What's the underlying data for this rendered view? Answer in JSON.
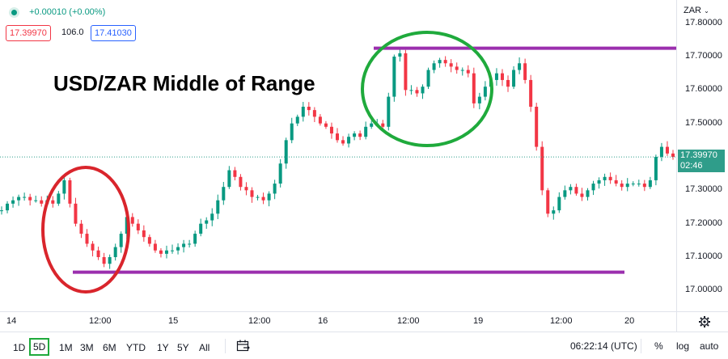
{
  "header": {
    "change_text": "+0.00010 (+0.00%)",
    "bid": "17.39970",
    "spread": "106.0",
    "ask": "17.41030",
    "currency_menu": "ZAR",
    "title": "USD/ZAR Middle of Range"
  },
  "price_axis": {
    "ticks": [
      "17.80000",
      "17.70000",
      "17.60000",
      "17.50000",
      "17.40000",
      "17.30000",
      "17.20000",
      "17.10000",
      "17.00000"
    ],
    "current_price": "17.39970",
    "countdown": "02:46"
  },
  "time_axis": {
    "ticks": [
      "14",
      "12:00",
      "15",
      "12:00",
      "16",
      "12:00",
      "19",
      "12:00",
      "20"
    ]
  },
  "bottom_bar": {
    "ranges": [
      "1D",
      "5D",
      "1M",
      "3M",
      "6M",
      "YTD",
      "1Y",
      "5Y",
      "All"
    ],
    "active_range": "5D",
    "clock": "06:22:14 (UTC)",
    "percent_label": "%",
    "log_label": "log",
    "auto_label": "auto",
    "compare_icon": "date-range-icon",
    "settings_icon": "gear-icon"
  },
  "colors": {
    "up": "#089981",
    "down": "#f23645",
    "range_line": "#9b2fae",
    "circle_green": "#1faa3c",
    "circle_red": "#d9252c",
    "current_price_bg": "#2f9d8a"
  },
  "chart_data": {
    "type": "line",
    "title": "USD/ZAR Middle of Range",
    "x_ticks": [
      "14",
      "12:00",
      "15",
      "12:00",
      "16",
      "12:00",
      "19",
      "12:00",
      "20"
    ],
    "ylim": [
      16.95,
      17.85
    ],
    "resistance_level": 17.725,
    "support_level": 17.055,
    "current_price": 17.3997,
    "series": [
      {
        "values": [
          17.24,
          17.26,
          17.27,
          17.28,
          17.28,
          17.27,
          17.27,
          17.26,
          17.27,
          17.26,
          17.29,
          17.33,
          17.26,
          17.2,
          17.17,
          17.14,
          17.12,
          17.1,
          17.08,
          17.1,
          17.13,
          17.17,
          17.22,
          17.2,
          17.18,
          17.16,
          17.14,
          17.12,
          17.11,
          17.12,
          17.12,
          17.13,
          17.14,
          17.14,
          17.17,
          17.2,
          17.21,
          17.23,
          17.27,
          17.31,
          17.36,
          17.34,
          17.31,
          17.3,
          17.28,
          17.28,
          17.27,
          17.29,
          17.32,
          17.38,
          17.45,
          17.5,
          17.52,
          17.55,
          17.54,
          17.52,
          17.5,
          17.49,
          17.47,
          17.45,
          17.44,
          17.46,
          17.47,
          17.46,
          17.49,
          17.5,
          17.5,
          17.49,
          17.58,
          17.7,
          17.71,
          17.6,
          17.6,
          17.59,
          17.61,
          17.66,
          17.68,
          17.69,
          17.68,
          17.67,
          17.66,
          17.66,
          17.65,
          17.56,
          17.58,
          17.61,
          17.63,
          17.65,
          17.63,
          17.61,
          17.66,
          17.68,
          17.63,
          17.55,
          17.43,
          17.3,
          17.23,
          17.24,
          17.28,
          17.3,
          17.31,
          17.29,
          17.28,
          17.3,
          17.32,
          17.33,
          17.34,
          17.33,
          17.32,
          17.31,
          17.32,
          17.32,
          17.32,
          17.31,
          17.33,
          17.4,
          17.43,
          17.41,
          17.4
        ]
      }
    ]
  }
}
